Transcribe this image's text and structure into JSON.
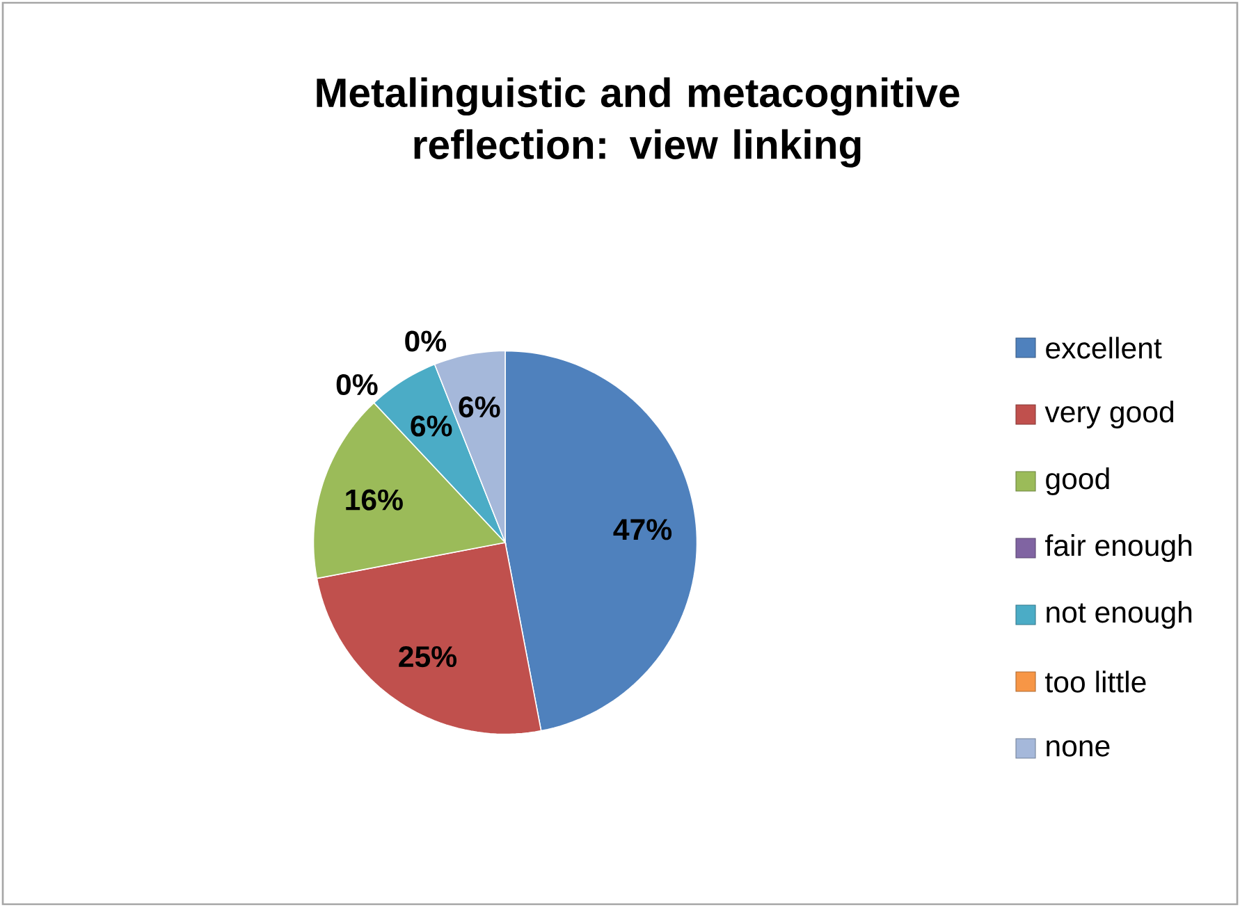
{
  "chart_data": {
    "type": "pie",
    "title": "Metalinguistic and metacognitive reflection: view linking",
    "categories": [
      "excellent",
      "very good",
      "good",
      "fair enough",
      "not enough",
      "too little",
      "none"
    ],
    "values": [
      47,
      25,
      16,
      0,
      6,
      0,
      6
    ],
    "colors": [
      "#4f81bd",
      "#c0504d",
      "#9bbb59",
      "#8064a2",
      "#4bacc6",
      "#f79646",
      "#a5b8da"
    ],
    "value_labels": [
      "47%",
      "25%",
      "16%",
      "0%",
      "6%",
      "0%",
      "6%"
    ],
    "legend": "right"
  }
}
